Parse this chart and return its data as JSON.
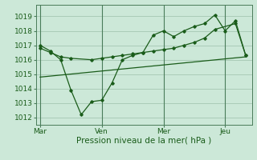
{
  "bg_color": "#cce8d8",
  "grid_color": "#aaccb8",
  "line_color": "#1a5c1a",
  "vline_color": "#4a7c5a",
  "ylabel_ticks": [
    1012,
    1013,
    1014,
    1015,
    1016,
    1017,
    1018,
    1019
  ],
  "ylim": [
    1011.5,
    1019.8
  ],
  "xlabel": "Pression niveau de la mer( hPa )",
  "day_labels": [
    "Mar",
    "Ven",
    "Mer",
    "Jeu"
  ],
  "day_positions": [
    0,
    3,
    6,
    9
  ],
  "xlim": [
    -0.2,
    10.3
  ],
  "series1_x": [
    0,
    0.5,
    1.0,
    1.5,
    2.0,
    2.5,
    3.0,
    3.5,
    4.0,
    4.5,
    5.0,
    5.5,
    6.0,
    6.5,
    7.0,
    7.5,
    8.0,
    8.5,
    9.0,
    9.5,
    10.0
  ],
  "series1_y": [
    1017.0,
    1016.6,
    1016.0,
    1013.9,
    1012.2,
    1013.1,
    1013.2,
    1014.4,
    1016.0,
    1016.3,
    1016.5,
    1017.7,
    1018.0,
    1017.6,
    1018.0,
    1018.3,
    1018.5,
    1019.1,
    1018.0,
    1018.7,
    1016.3
  ],
  "series2_x": [
    0,
    0.5,
    1.0,
    1.5,
    2.5,
    3.0,
    3.5,
    4.0,
    4.5,
    5.0,
    5.5,
    6.0,
    6.5,
    7.0,
    7.5,
    8.0,
    8.5,
    9.5,
    10.0
  ],
  "series2_y": [
    1016.8,
    1016.5,
    1016.2,
    1016.1,
    1016.0,
    1016.1,
    1016.2,
    1016.3,
    1016.4,
    1016.5,
    1016.6,
    1016.7,
    1016.8,
    1017.0,
    1017.2,
    1017.5,
    1018.1,
    1018.5,
    1016.3
  ],
  "series3_x": [
    0,
    10.0
  ],
  "series3_y": [
    1014.8,
    1016.2
  ]
}
